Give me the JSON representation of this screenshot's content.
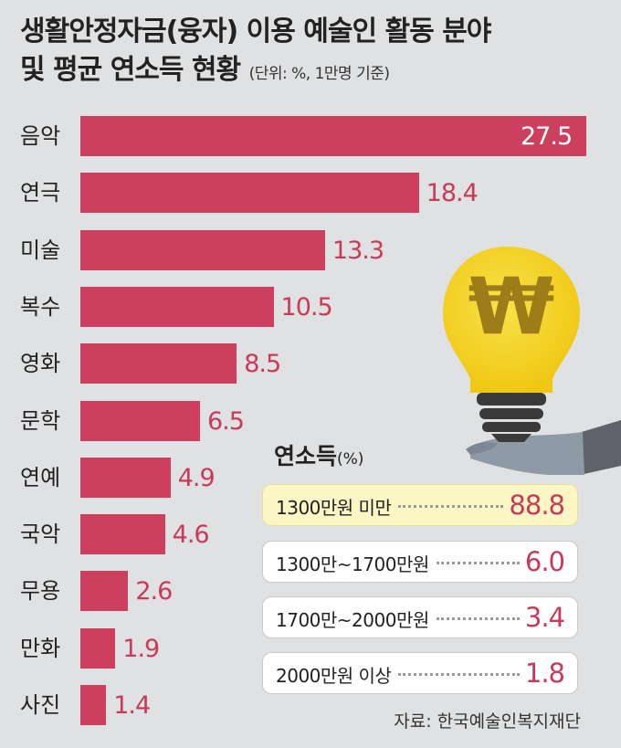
{
  "title": {
    "line1": "생활안정자금(융자) 이용 예술인 활동 분야",
    "line2": "및 평균 연소득 현황",
    "unit": "(단위: %, 1만명 기준)"
  },
  "chart_data": {
    "type": "bar",
    "orientation": "horizontal",
    "categories": [
      "음악",
      "연극",
      "미술",
      "복수",
      "영화",
      "문학",
      "연예",
      "국악",
      "무용",
      "만화",
      "사진"
    ],
    "values": [
      27.5,
      18.4,
      13.3,
      10.5,
      8.5,
      6.5,
      4.9,
      4.6,
      2.6,
      1.9,
      1.4
    ],
    "value_labels": [
      "27.5",
      "18.4",
      "13.3",
      "10.5",
      "8.5",
      "6.5",
      "4.9",
      "4.6",
      "2.6",
      "1.9",
      "1.4"
    ],
    "bar_color": "#cc3f5e"
  },
  "income": {
    "title": "연소득",
    "unit": "(%)",
    "rows": [
      {
        "label": "1300만원 미만",
        "value": "88.8"
      },
      {
        "label": "1300만~1700만원",
        "value": "6.0"
      },
      {
        "label": "1700만~2000만원",
        "value": "3.4"
      },
      {
        "label": "2000만원 이상",
        "value": "1.8"
      }
    ]
  },
  "illustration": {
    "icon": "lightbulb-won-icon",
    "symbol": "₩",
    "colors": {
      "bulb": "#f4d21f",
      "base": "#3a3a3a",
      "hand": "#8e9aa6",
      "sleeve": "#5f6368"
    }
  },
  "source": "자료: 한국예술인복지재단"
}
